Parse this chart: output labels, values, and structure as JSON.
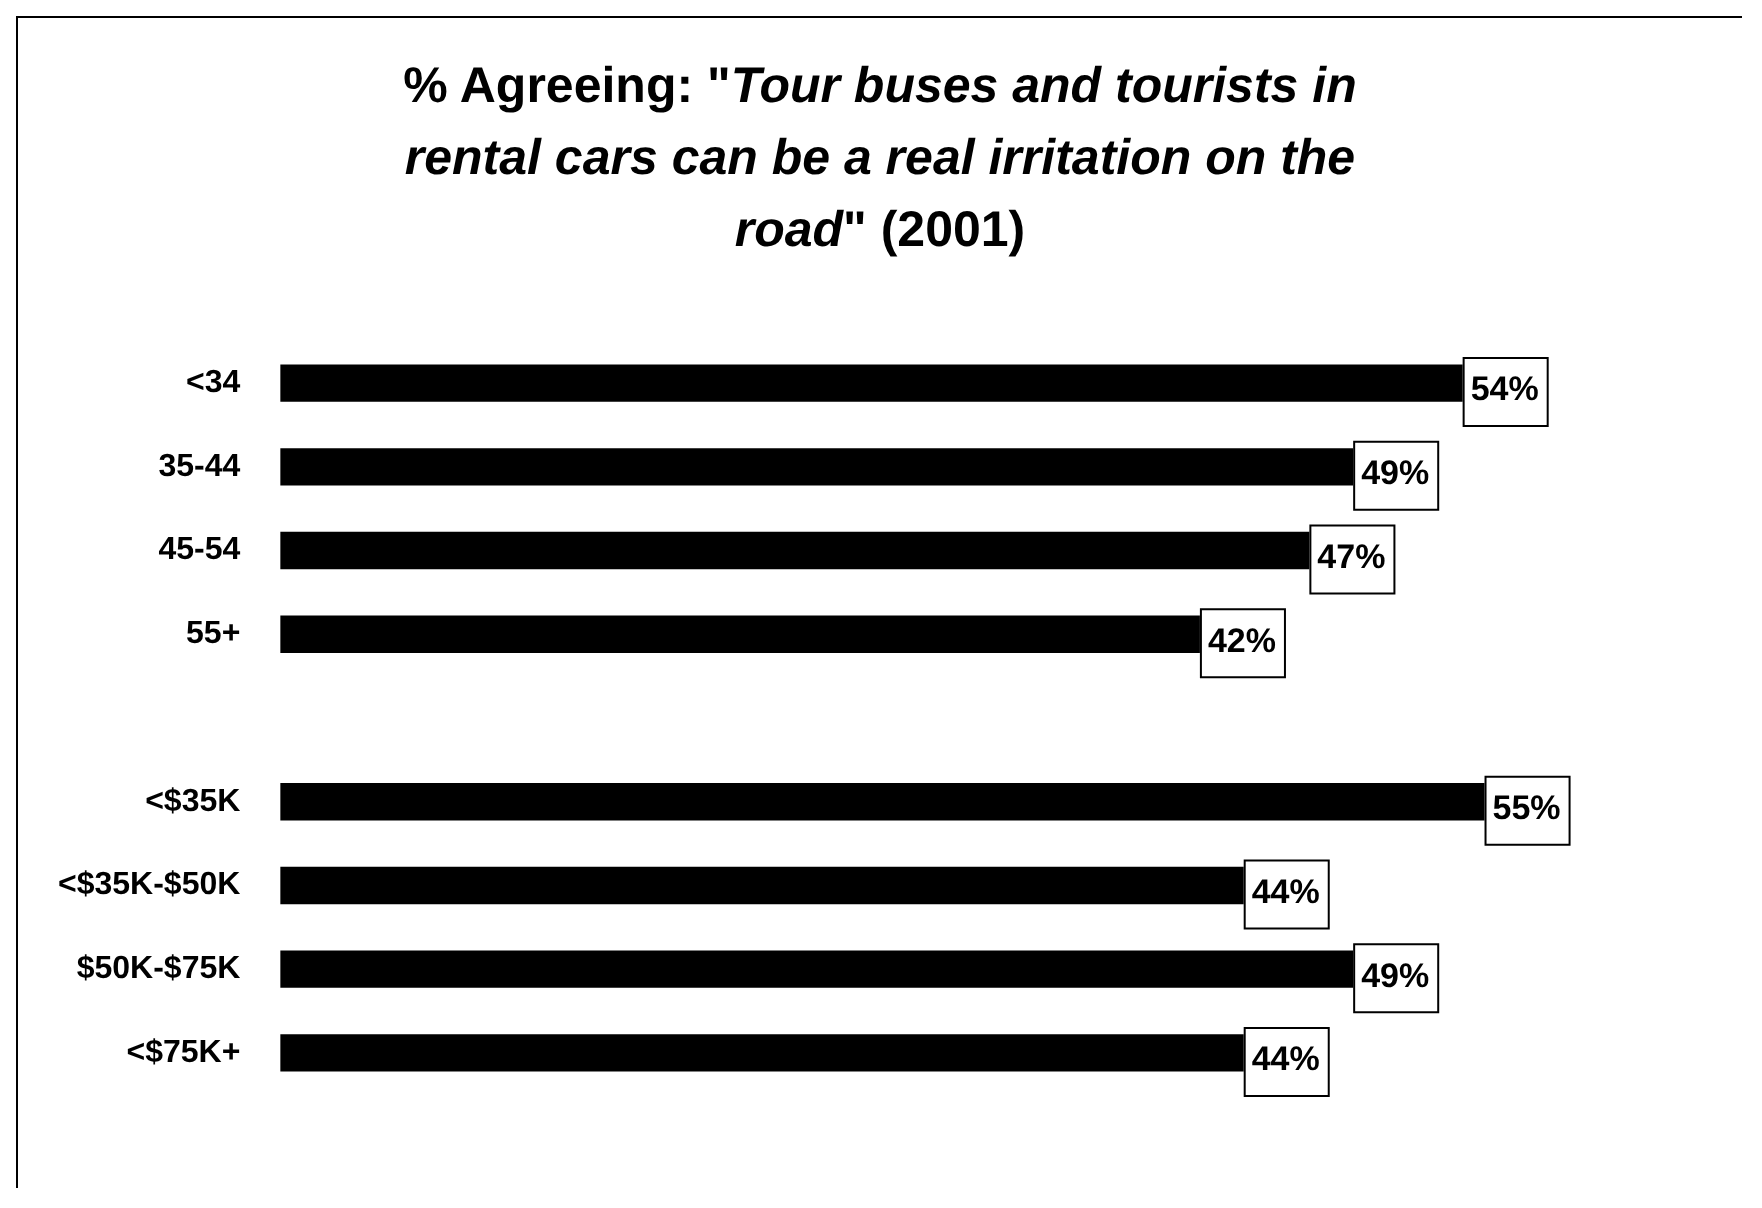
{
  "chart_data": {
    "type": "bar",
    "orientation": "horizontal",
    "title": "% Agreeing: \"Tour buses and tourists in rental cars can be a real irritation on the road\" (2001)",
    "categories": [
      "<34",
      "35-44",
      "45-54",
      "55+",
      null,
      "<$35K",
      "<$35K-$50K",
      "$50K-$75K",
      "<$75K+"
    ],
    "values": [
      54,
      49,
      47,
      42,
      null,
      55,
      44,
      49,
      44
    ],
    "value_labels": [
      "54%",
      "49%",
      "47%",
      "42%",
      null,
      "55%",
      "44%",
      "49%",
      "44%"
    ],
    "color": "#000000"
  }
}
